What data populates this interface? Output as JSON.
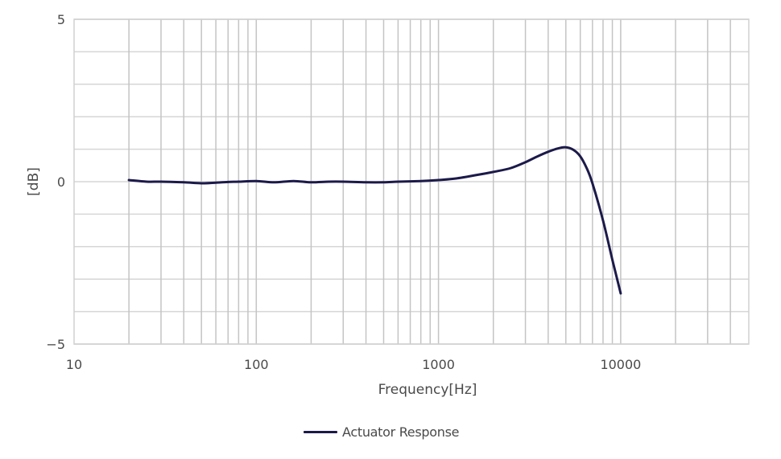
{
  "chart_data": {
    "type": "line",
    "title": "",
    "xlabel": "Frequency[Hz]",
    "ylabel": "[dB]",
    "xscale": "log",
    "xlim": [
      10,
      50000
    ],
    "ylim": [
      -5,
      5
    ],
    "grid": true,
    "legend_position": "bottom-center",
    "x_tick_labels": [
      "10",
      "100",
      "1000",
      "10000"
    ],
    "y_tick_labels": [
      "5",
      "0",
      "-5"
    ],
    "series": [
      {
        "name": "Actuator Response",
        "color": "#1c1a4a",
        "x": [
          20,
          25,
          30,
          40,
          50,
          60,
          70,
          80,
          100,
          125,
          160,
          200,
          250,
          300,
          400,
          500,
          600,
          800,
          1000,
          1250,
          1600,
          2000,
          2500,
          3000,
          3500,
          4000,
          4500,
          5000,
          5500,
          6000,
          6500,
          7000,
          8000,
          9000,
          10000
        ],
        "y": [
          0.05,
          0.0,
          0.0,
          -0.02,
          -0.05,
          -0.03,
          -0.01,
          0.0,
          0.02,
          -0.02,
          0.02,
          -0.02,
          0.0,
          0.0,
          -0.02,
          -0.02,
          0.0,
          0.02,
          0.05,
          0.1,
          0.2,
          0.3,
          0.42,
          0.6,
          0.78,
          0.92,
          1.02,
          1.06,
          0.98,
          0.78,
          0.42,
          -0.05,
          -1.2,
          -2.4,
          -3.44
        ]
      }
    ]
  },
  "legend": {
    "label": "Actuator Response"
  },
  "colors": {
    "line": "#1c1a4a",
    "grid": "#c4c4c4",
    "text": "#4a4a4a"
  }
}
